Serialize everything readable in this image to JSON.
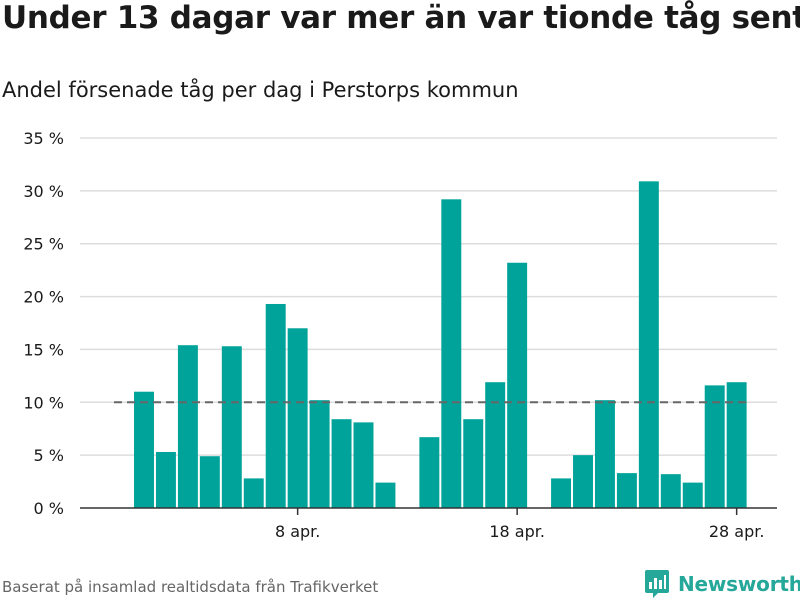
{
  "header": {
    "title": "Under 13 dagar var mer än var tionde tåg sent",
    "subtitle": "Andel försenade tåg per dag i Perstorps kommun"
  },
  "footer": {
    "source": "Baserat på insamlad realtidsdata från Trafikverket",
    "brand": "Newsworthy",
    "brand_icon": "bar-chart-logo-icon"
  },
  "colors": {
    "bar": "#00a39a",
    "grid": "#dddddd",
    "axis": "#333333",
    "reference_line": "#666666",
    "brand": "#25a79a"
  },
  "chart_data": {
    "type": "bar",
    "x": [
      "2020-04-01",
      "2020-04-02",
      "2020-04-03",
      "2020-04-04",
      "2020-04-05",
      "2020-04-06",
      "2020-04-07",
      "2020-04-08",
      "2020-04-09",
      "2020-04-10",
      "2020-04-11",
      "2020-04-12",
      "2020-04-13",
      "2020-04-14",
      "2020-04-15",
      "2020-04-16",
      "2020-04-17",
      "2020-04-18",
      "2020-04-19",
      "2020-04-20",
      "2020-04-21",
      "2020-04-22",
      "2020-04-23",
      "2020-04-24",
      "2020-04-25",
      "2020-04-26",
      "2020-04-27",
      "2020-04-28",
      "2020-04-29",
      "2020-04-30"
    ],
    "values": [
      11.0,
      5.3,
      15.4,
      4.9,
      15.3,
      2.8,
      19.3,
      17.0,
      10.2,
      8.4,
      8.1,
      2.4,
      null,
      6.7,
      29.2,
      8.4,
      11.9,
      23.2,
      null,
      2.8,
      5.0,
      10.2,
      3.3,
      30.9,
      3.2,
      2.4,
      11.6,
      11.9,
      null,
      null
    ],
    "y_ticks": [
      0,
      5,
      10,
      15,
      20,
      25,
      30,
      35
    ],
    "y_tick_labels": [
      "0 %",
      "5 %",
      "10 %",
      "15 %",
      "20 %",
      "25 %",
      "30 %",
      "35 %"
    ],
    "x_tick_labels": [
      {
        "date": "2020-04-08",
        "label": "8 apr."
      },
      {
        "date": "2020-04-18",
        "label": "18 apr."
      },
      {
        "date": "2020-04-28",
        "label": "28 apr."
      }
    ],
    "ylim": [
      0,
      35
    ],
    "reference_line": 10,
    "grid": true,
    "legend": "none"
  }
}
